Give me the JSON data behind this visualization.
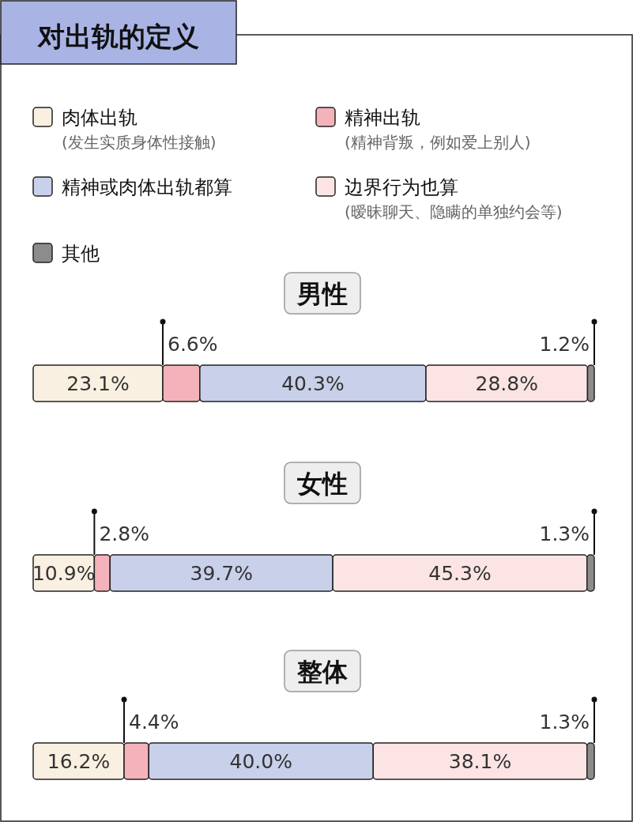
{
  "chart_data": [
    {
      "type": "bar",
      "orientation": "horizontal",
      "stacked": true,
      "title": "对出轨的定义",
      "subtitle": "男性",
      "categories": [
        null
      ],
      "legend": "top",
      "series": [
        {
          "name": "肉体出轨\n(发生实质身体性接触)",
          "color": "#f9f0e1",
          "values": [
            23.1
          ],
          "value_labels": [
            "23.1%"
          ]
        },
        {
          "name": "精神出轨\n(精神背叛，例如爱上别人)",
          "color": "#f4b3bb",
          "values": [
            6.6
          ],
          "value_labels": [
            "6.6%"
          ]
        },
        {
          "name": "精神或肉体出轨都算",
          "color": "#c8d0ea",
          "values": [
            40.3
          ],
          "value_labels": [
            "40.3%"
          ]
        },
        {
          "name": "边界行为也算\n(暧昧聊天、隐瞒的单独约会等)",
          "color": "#fce4e4",
          "values": [
            28.8
          ],
          "value_labels": [
            "28.8%"
          ]
        },
        {
          "name": "其他",
          "color": "#8c8c8c",
          "values": [
            1.2
          ],
          "value_labels": [
            "1.2%"
          ]
        }
      ]
    },
    {
      "type": "bar",
      "orientation": "horizontal",
      "stacked": true,
      "title": "女性",
      "categories": [
        null
      ],
      "series": [
        {
          "color": "#f9f0e1",
          "values": [
            10.9
          ],
          "value_labels": [
            "10.9%"
          ]
        },
        {
          "color": "#f4b3bb",
          "values": [
            2.8
          ],
          "value_labels": [
            "2.8%"
          ]
        },
        {
          "color": "#c8d0ea",
          "values": [
            39.7
          ],
          "value_labels": [
            "39.7%"
          ]
        },
        {
          "color": "#fce4e4",
          "values": [
            45.3
          ],
          "value_labels": [
            "45.3%"
          ]
        },
        {
          "color": "#8c8c8c",
          "values": [
            1.3
          ],
          "value_labels": [
            "1.3%"
          ]
        }
      ]
    },
    {
      "type": "bar",
      "orientation": "horizontal",
      "stacked": true,
      "title": "整体",
      "categories": [
        null
      ],
      "series": [
        {
          "color": "#f9f0e1",
          "values": [
            16.2
          ],
          "value_labels": [
            "16.2%"
          ]
        },
        {
          "color": "#f4b3bb",
          "values": [
            4.4
          ],
          "value_labels": [
            "4.4%"
          ]
        },
        {
          "color": "#c8d0ea",
          "values": [
            40.0
          ],
          "value_labels": [
            "40.0%"
          ]
        },
        {
          "color": "#fce4e4",
          "values": [
            38.1
          ],
          "value_labels": [
            "38.1%"
          ]
        },
        {
          "color": "#8c8c8c",
          "values": [
            1.3
          ],
          "value_labels": [
            "1.3%"
          ]
        }
      ]
    }
  ]
}
